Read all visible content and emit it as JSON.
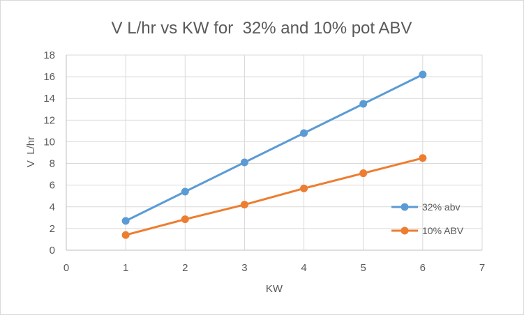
{
  "chart_data": {
    "type": "scatter",
    "title": "V L/hr vs KW for  32% and 10% pot ABV",
    "xlabel": "KW",
    "ylabel": "V  L/hr",
    "xlim": [
      0,
      7
    ],
    "ylim": [
      0,
      18
    ],
    "xticks": [
      0,
      1,
      2,
      3,
      4,
      5,
      6,
      7
    ],
    "yticks": [
      0,
      2,
      4,
      6,
      8,
      10,
      12,
      14,
      16,
      18
    ],
    "grid": true,
    "legend_position": "right",
    "x": [
      1,
      2,
      3,
      4,
      5,
      6
    ],
    "series": [
      {
        "name": "32% abv",
        "color": "#5b9bd5",
        "values": [
          2.7,
          5.4,
          8.1,
          10.8,
          13.5,
          16.2
        ]
      },
      {
        "name": "10% ABV",
        "color": "#ed7d31",
        "values": [
          1.4,
          2.85,
          4.2,
          5.7,
          7.1,
          8.5
        ]
      }
    ]
  }
}
